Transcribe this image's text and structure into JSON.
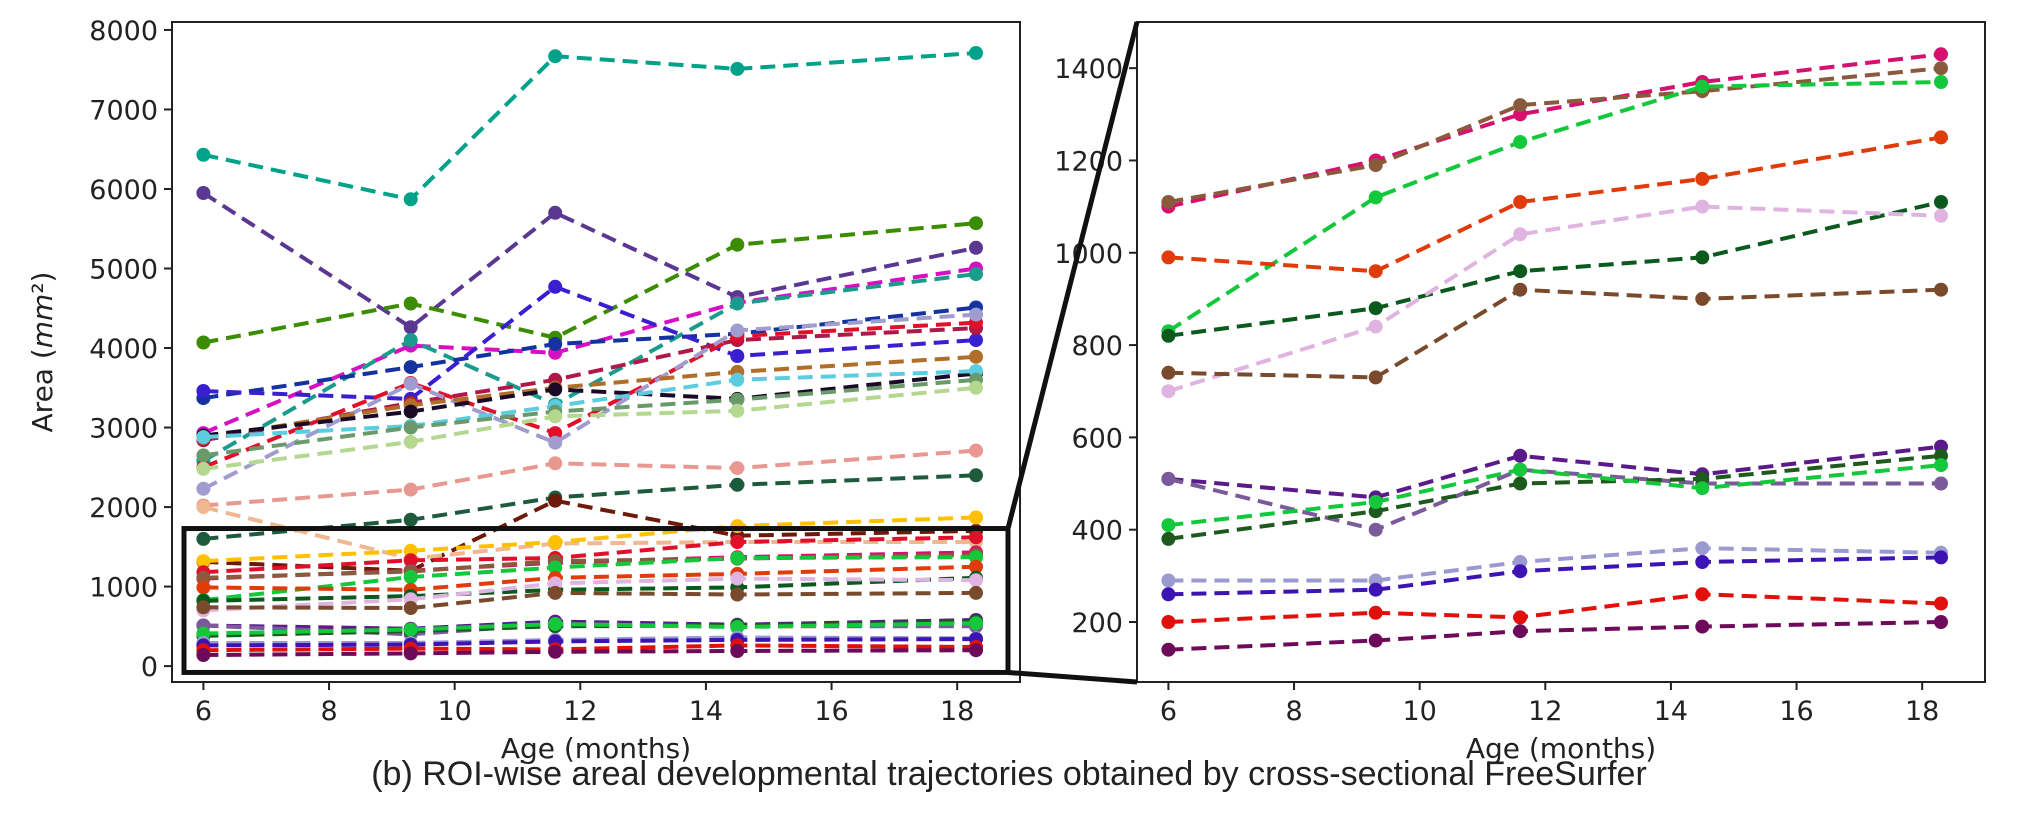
{
  "caption": "(b) ROI-wise areal developmental trajectories obtained by cross-sectional FreeSurfer",
  "chart_data": [
    {
      "type": "line",
      "name": "full-view",
      "xlabel": "Age (months)",
      "ylabel": "Area (mm²)",
      "xlim": [
        5.5,
        19
      ],
      "ylim": [
        -200,
        8100
      ],
      "xticks": [
        "6",
        "8",
        "10",
        "12",
        "14",
        "16",
        "18"
      ],
      "yticks": [
        "0",
        "1000",
        "2000",
        "3000",
        "4000",
        "5000",
        "6000",
        "7000",
        "8000"
      ],
      "x": [
        6,
        9.3,
        11.6,
        14.5,
        18.3
      ],
      "series": [
        {
          "color": "#00a38a",
          "values": [
            6430,
            5870,
            7670,
            7510,
            7710
          ]
        },
        {
          "color": "#5a3791",
          "values": [
            5950,
            4260,
            5700,
            4640,
            5260
          ]
        },
        {
          "color": "#3c8c00",
          "values": [
            4070,
            4560,
            4130,
            5300,
            5570
          ]
        },
        {
          "color": "#d70fc3",
          "values": [
            2930,
            4030,
            3940,
            4570,
            5000
          ]
        },
        {
          "color": "#1a9c8c",
          "values": [
            2580,
            4100,
            3290,
            4560,
            4930
          ]
        },
        {
          "color": "#1432a0",
          "values": [
            3370,
            3760,
            4050,
            4180,
            4510
          ]
        },
        {
          "color": "#3a1fd0",
          "values": [
            3460,
            3360,
            4770,
            3900,
            4100
          ]
        },
        {
          "color": "#b01848",
          "values": [
            2840,
            3310,
            3600,
            4100,
            4250
          ]
        },
        {
          "color": "#e0102a",
          "values": [
            2500,
            3560,
            2930,
            4150,
            4320
          ]
        },
        {
          "color": "#a09cd0",
          "values": [
            2230,
            3550,
            2810,
            4220,
            4420
          ]
        },
        {
          "color": "#b06e28",
          "values": [
            2870,
            3280,
            3500,
            3700,
            3890
          ]
        },
        {
          "color": "#1a0a28",
          "values": [
            2900,
            3200,
            3480,
            3360,
            3680
          ]
        },
        {
          "color": "#5ccce0",
          "values": [
            2880,
            3020,
            3270,
            3600,
            3710
          ]
        },
        {
          "color": "#6a9a6a",
          "values": [
            2650,
            3000,
            3200,
            3350,
            3600
          ]
        },
        {
          "color": "#b4d890",
          "values": [
            2480,
            2820,
            3140,
            3210,
            3500
          ]
        },
        {
          "color": "#e89890",
          "values": [
            2020,
            2220,
            2550,
            2490,
            2710
          ]
        },
        {
          "color": "#1e5a3c",
          "values": [
            1600,
            1840,
            2120,
            2280,
            2400
          ]
        },
        {
          "color": "#6e1a0a",
          "values": [
            1310,
            1200,
            2080,
            1640,
            1700
          ]
        },
        {
          "color": "#f0b890",
          "values": [
            2000,
            1350,
            1540,
            1560,
            1560
          ]
        },
        {
          "color": "#ffc000",
          "values": [
            1320,
            1450,
            1560,
            1760,
            1870
          ]
        },
        {
          "color": "#e0102a",
          "values": [
            1180,
            1330,
            1360,
            1560,
            1620
          ]
        },
        {
          "color": "#d70f6e",
          "values": [
            1100,
            1200,
            1300,
            1370,
            1430
          ]
        },
        {
          "color": "#8a5a3c",
          "values": [
            1110,
            1190,
            1320,
            1350,
            1400
          ]
        },
        {
          "color": "#14c83c",
          "values": [
            830,
            1120,
            1240,
            1360,
            1370
          ]
        },
        {
          "color": "#e03c0a",
          "values": [
            990,
            960,
            1110,
            1160,
            1250
          ]
        },
        {
          "color": "#0a5a1e",
          "values": [
            820,
            880,
            960,
            990,
            1110
          ]
        },
        {
          "color": "#e0b4e0",
          "values": [
            700,
            840,
            1040,
            1100,
            1080
          ]
        },
        {
          "color": "#7a4a2c",
          "values": [
            740,
            730,
            920,
            900,
            920
          ]
        },
        {
          "color": "#5a1a8a",
          "values": [
            510,
            470,
            560,
            520,
            580
          ]
        },
        {
          "color": "#7a5a9a",
          "values": [
            510,
            400,
            530,
            500,
            500
          ]
        },
        {
          "color": "#1e5a1e",
          "values": [
            380,
            440,
            500,
            510,
            560
          ]
        },
        {
          "color": "#14c83c",
          "values": [
            410,
            460,
            530,
            490,
            540
          ]
        },
        {
          "color": "#9a9ad0",
          "values": [
            290,
            290,
            330,
            360,
            350
          ]
        },
        {
          "color": "#3c14b4",
          "values": [
            260,
            270,
            310,
            330,
            340
          ]
        },
        {
          "color": "#e0100a",
          "values": [
            200,
            220,
            210,
            260,
            240
          ]
        },
        {
          "color": "#6e0a5a",
          "values": [
            140,
            160,
            180,
            190,
            200
          ]
        }
      ]
    },
    {
      "type": "line",
      "name": "zoom-view",
      "xlabel": "Age (months)",
      "ylabel": "",
      "xlim": [
        5.5,
        19
      ],
      "ylim": [
        70,
        1500
      ],
      "xticks": [
        "6",
        "8",
        "10",
        "12",
        "14",
        "16",
        "18"
      ],
      "yticks": [
        "200",
        "400",
        "600",
        "800",
        "1000",
        "1200",
        "1400"
      ],
      "x": [
        6,
        9.3,
        11.6,
        14.5,
        18.3
      ],
      "series": [
        {
          "color": "#d70f6e",
          "values": [
            1100,
            1200,
            1300,
            1370,
            1430
          ]
        },
        {
          "color": "#8a5a3c",
          "values": [
            1110,
            1190,
            1320,
            1350,
            1400
          ]
        },
        {
          "color": "#14c83c",
          "values": [
            830,
            1120,
            1240,
            1360,
            1370
          ]
        },
        {
          "color": "#e03c0a",
          "values": [
            990,
            960,
            1110,
            1160,
            1250
          ]
        },
        {
          "color": "#0a5a1e",
          "values": [
            820,
            880,
            960,
            990,
            1110
          ]
        },
        {
          "color": "#e0b4e0",
          "values": [
            700,
            840,
            1040,
            1100,
            1080
          ]
        },
        {
          "color": "#7a4a2c",
          "values": [
            740,
            730,
            920,
            900,
            920
          ]
        },
        {
          "color": "#5a1a8a",
          "values": [
            510,
            470,
            560,
            520,
            580
          ]
        },
        {
          "color": "#7a5a9a",
          "values": [
            510,
            400,
            530,
            500,
            500
          ]
        },
        {
          "color": "#1e5a1e",
          "values": [
            380,
            440,
            500,
            510,
            560
          ]
        },
        {
          "color": "#14c83c",
          "values": [
            410,
            460,
            530,
            490,
            540
          ]
        },
        {
          "color": "#9a9ad0",
          "values": [
            290,
            290,
            330,
            360,
            350
          ]
        },
        {
          "color": "#3c14b4",
          "values": [
            260,
            270,
            310,
            330,
            340
          ]
        },
        {
          "color": "#e0100a",
          "values": [
            200,
            220,
            210,
            260,
            240
          ]
        },
        {
          "color": "#6e0a5a",
          "values": [
            140,
            160,
            180,
            190,
            200
          ]
        }
      ]
    }
  ]
}
